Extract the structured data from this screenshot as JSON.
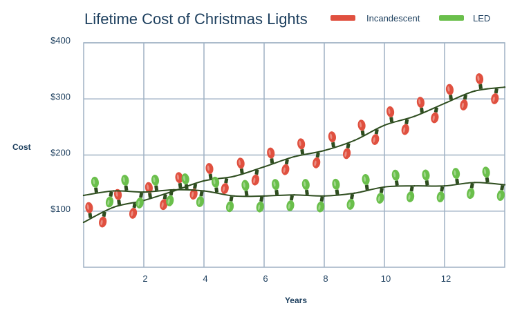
{
  "chart_data": {
    "type": "line",
    "title": "Lifetime Cost of Christmas Lights",
    "xlabel": "Years",
    "ylabel": "Cost",
    "xlim": [
      0,
      14
    ],
    "ylim": [
      0,
      400
    ],
    "x_ticks": [
      2,
      4,
      6,
      8,
      10,
      12
    ],
    "x_tick_labels": [
      "2",
      "4",
      "6",
      "8",
      "10",
      "12"
    ],
    "y_ticks": [
      100,
      200,
      300,
      400
    ],
    "y_tick_labels": [
      "$100",
      "$200",
      "$300",
      "$400"
    ],
    "grid": true,
    "legend_position": "top-right",
    "x": [
      0,
      1,
      2,
      3,
      4,
      5,
      6,
      7,
      8,
      9,
      10,
      11,
      12,
      13,
      14
    ],
    "series": [
      {
        "name": "Incandescent",
        "color": "#e0503f",
        "values": [
          80,
          107,
          119,
          136,
          154,
          162,
          179,
          197,
          208,
          226,
          253,
          269,
          292,
          314,
          321
        ]
      },
      {
        "name": "LED",
        "color": "#6abf4b",
        "values": [
          128,
          136,
          134,
          138,
          136,
          127,
          127,
          129,
          127,
          132,
          143,
          145,
          145,
          151,
          147
        ]
      }
    ],
    "wire_color": "#2e4d1f",
    "text_color": "#1d3f5e"
  }
}
